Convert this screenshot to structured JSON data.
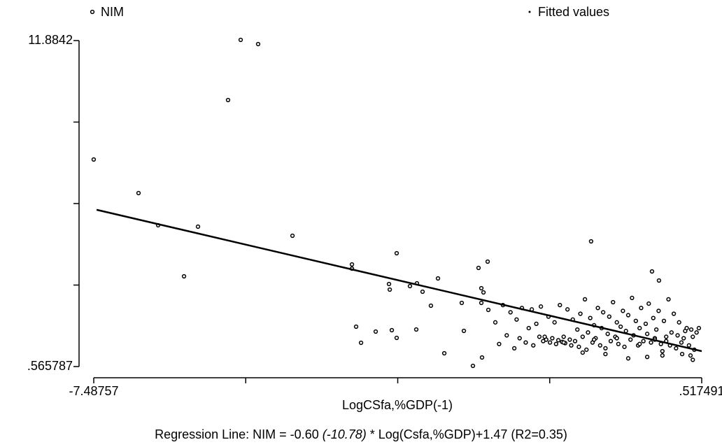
{
  "chart_data": {
    "type": "scatter",
    "x_label": "LogCSfa,%GDP(-1)",
    "caption": {
      "before": "Regression Line: NIM = -0.60 ",
      "italic": "(-10.78)",
      "after": " * Log(Csfa,%GDP)+1.47 (R2=0.35)"
    },
    "xlim": [
      -7.48757,
      0.517491
    ],
    "ylim": [
      0.565787,
      11.8842
    ],
    "xticks": [
      {
        "value": -7.48757,
        "label": "-7.48757"
      },
      {
        "value": 0.517491,
        "label": ".517491"
      }
    ],
    "yticks": [
      {
        "value": 0.565787,
        "label": ".565787"
      },
      {
        "value": 11.8842,
        "label": "11.8842"
      }
    ],
    "xminorticks": [
      -5.4863,
      -3.485,
      -1.4838
    ],
    "yminorticks": [
      3.3954,
      6.225,
      9.0546
    ],
    "series": [
      {
        "name": "NIM",
        "style": "markers",
        "color": "#000000",
        "x": [
          -7.488,
          -6.898,
          -6.64,
          -6.115,
          -6.299,
          -5.719,
          -5.553,
          -5.323,
          -4.871,
          -4.088,
          -4.088,
          -3.499,
          -3.6,
          -3.59,
          -3.775,
          -4.033,
          -3.968,
          -3.563,
          -3.499,
          -3.232,
          -3.324,
          -3.158,
          -3.048,
          -3.241,
          -2.955,
          -2.872,
          -2.642,
          -2.614,
          -2.495,
          -2.421,
          -2.301,
          -2.384,
          -2.356,
          -2.292,
          -2.375,
          -2.384,
          -0.939,
          -0.137,
          -0.045,
          -2.2,
          -2.15,
          -2.1,
          -2.05,
          -2.0,
          -1.95,
          -1.92,
          -1.88,
          -1.85,
          -1.8,
          -1.76,
          -1.72,
          -1.7,
          -1.66,
          -1.62,
          -1.6,
          -1.57,
          -1.53,
          -1.5,
          -1.48,
          -1.45,
          -1.42,
          -1.4,
          -1.37,
          -1.35,
          -1.32,
          -1.3,
          -1.28,
          -1.25,
          -1.22,
          -1.2,
          -1.18,
          -1.15,
          -1.12,
          -1.1,
          -1.08,
          -1.05,
          -1.02,
          -1.0,
          -0.98,
          -0.95,
          -0.92,
          -0.9,
          -0.88,
          -0.85,
          -0.82,
          -0.8,
          -0.78,
          -0.75,
          -0.72,
          -0.7,
          -0.68,
          -0.65,
          -0.62,
          -0.6,
          -0.58,
          -0.55,
          -0.52,
          -0.5,
          -0.48,
          -0.45,
          -0.42,
          -0.4,
          -0.38,
          -0.35,
          -0.32,
          -0.3,
          -0.28,
          -0.25,
          -0.22,
          -0.2,
          -0.18,
          -0.15,
          -0.12,
          -0.1,
          -0.08,
          -0.05,
          -0.02,
          0.0,
          0.02,
          0.05,
          0.08,
          0.1,
          0.12,
          0.15,
          0.18,
          0.2,
          0.22,
          0.25,
          0.28,
          0.3,
          0.32,
          0.35,
          0.38,
          0.4,
          0.42,
          0.45,
          0.48,
          -0.1,
          -0.6,
          -1.3,
          -0.9,
          -1.55,
          -0.3,
          0.05,
          0.26,
          -0.2,
          -0.45,
          0.0,
          0.37,
          0.4,
          -1.05,
          -0.75
        ],
        "values": [
          7.755,
          6.589,
          5.472,
          5.423,
          3.699,
          9.819,
          11.908,
          11.762,
          5.108,
          4.112,
          3.966,
          4.5,
          3.432,
          3.237,
          1.78,
          1.95,
          1.392,
          1.829,
          1.562,
          3.456,
          3.359,
          3.165,
          2.679,
          1.853,
          3.626,
          1.027,
          2.776,
          1.804,
          0.59,
          3.99,
          4.209,
          3.286,
          3.14,
          2.533,
          0.882,
          2.776,
          4.913,
          3.869,
          3.553,
          2.1,
          1.35,
          2.7,
          1.65,
          2.45,
          1.2,
          2.2,
          1.55,
          2.6,
          1.4,
          1.9,
          2.55,
          1.3,
          2.05,
          1.6,
          2.65,
          1.45,
          1.5,
          2.3,
          1.4,
          1.55,
          2.1,
          1.35,
          1.48,
          2.7,
          1.42,
          1.6,
          1.38,
          2.55,
          1.5,
          1.3,
          2.2,
          1.45,
          1.85,
          1.25,
          2.4,
          1.6,
          2.9,
          1.15,
          1.75,
          2.25,
          1.4,
          2.0,
          1.55,
          2.6,
          1.3,
          1.9,
          2.45,
          1.2,
          1.7,
          2.3,
          1.45,
          2.8,
          1.6,
          2.1,
          1.35,
          1.95,
          2.5,
          1.25,
          1.8,
          2.35,
          1.5,
          2.95,
          1.65,
          2.15,
          1.3,
          1.9,
          2.6,
          1.45,
          2.05,
          1.7,
          2.75,
          1.4,
          2.25,
          1.55,
          1.85,
          2.5,
          1.35,
          1.1,
          2.15,
          1.6,
          2.9,
          1.3,
          1.75,
          2.4,
          1.2,
          1.65,
          2.1,
          1.4,
          1.55,
          1.8,
          1.9,
          1.3,
          1.85,
          1.6,
          1.15,
          1.75,
          1.9,
          1.5,
          1.55,
          1.4,
          1.5,
          1.6,
          1.35,
          1.45,
          1.0,
          0.9,
          0.85,
          0.95,
          0.95,
          0.8,
          1.05,
          1.0
        ]
      },
      {
        "name": "Fitted values",
        "style": "line",
        "color": "#000000",
        "x": [
          -7.45,
          0.517491
        ],
        "values": [
          6.01,
          1.1
        ]
      }
    ]
  }
}
